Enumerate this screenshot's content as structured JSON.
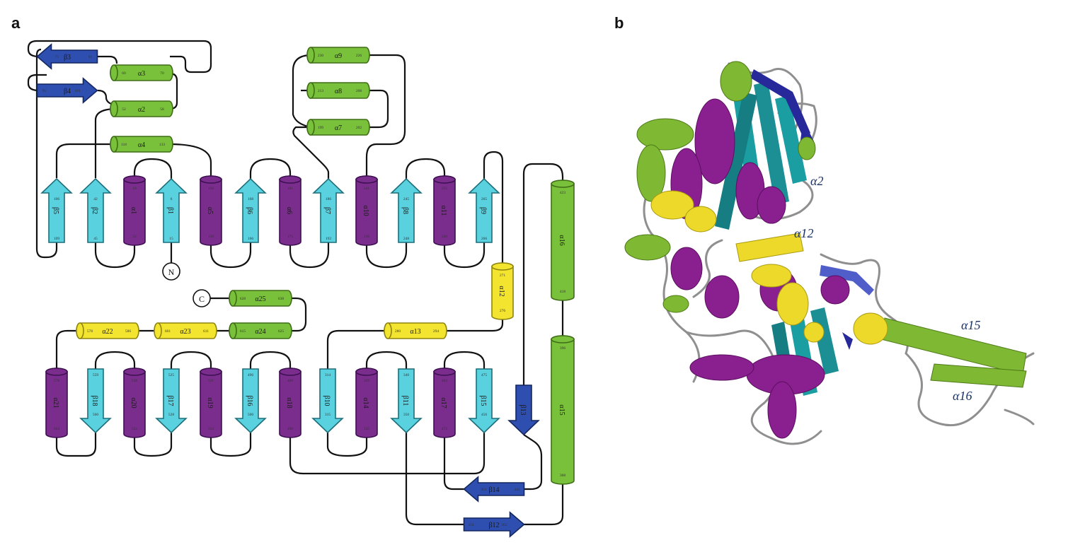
{
  "panel_a": {
    "letter": "a",
    "terminals": {
      "n": "N",
      "c": "C"
    },
    "colors": {
      "alpha_main": "#7b2d8e",
      "alpha_green": "#79c13a",
      "alpha_yellow": "#f3e52f",
      "beta_cyan": "#5ad1df",
      "beta_blue": "#2e4fb0",
      "loop": "#111111"
    },
    "elements": [
      {
        "id": "b3",
        "type": "arrow",
        "color": "blue",
        "label": "β3",
        "res": [
          "75",
          "91"
        ]
      },
      {
        "id": "a3",
        "type": "helix",
        "color": "green",
        "label": "α3",
        "res": [
          "60",
          "70"
        ]
      },
      {
        "id": "b4",
        "type": "arrow",
        "color": "blue",
        "label": "β4",
        "res": [
          "95",
          "101"
        ]
      },
      {
        "id": "a2",
        "type": "helix",
        "color": "green",
        "label": "α2",
        "res": [
          "52",
          "58"
        ]
      },
      {
        "id": "a4",
        "type": "helix",
        "color": "green",
        "label": "α4",
        "res": [
          "118",
          "133"
        ]
      },
      {
        "id": "a9",
        "type": "helix",
        "color": "green",
        "label": "α9",
        "res": [
          "230",
          "226"
        ]
      },
      {
        "id": "a8",
        "type": "helix",
        "color": "green",
        "label": "α8",
        "res": [
          "213",
          "208"
        ]
      },
      {
        "id": "a7",
        "type": "helix",
        "color": "green",
        "label": "α7",
        "res": [
          "199",
          "202"
        ]
      },
      {
        "id": "b5",
        "type": "arrow",
        "color": "cyan",
        "label": "β5",
        "res": [
          "106",
          "109"
        ]
      },
      {
        "id": "b2",
        "type": "arrow",
        "color": "cyan",
        "label": "β2",
        "res": [
          "42",
          "45"
        ]
      },
      {
        "id": "a1",
        "type": "helix",
        "color": "purple",
        "label": "α1",
        "res": [
          "18",
          "22"
        ]
      },
      {
        "id": "b1",
        "type": "arrow",
        "color": "cyan",
        "label": "β1",
        "res": [
          "6",
          "15"
        ]
      },
      {
        "id": "a5",
        "type": "helix",
        "color": "purple",
        "label": "α5",
        "res": [
          "150",
          "136"
        ]
      },
      {
        "id": "b6",
        "type": "arrow",
        "color": "cyan",
        "label": "β6",
        "res": [
          "168",
          "166"
        ]
      },
      {
        "id": "a6",
        "type": "helix",
        "color": "purple",
        "label": "α6",
        "res": [
          "181",
          "175"
        ]
      },
      {
        "id": "b7",
        "type": "arrow",
        "color": "cyan",
        "label": "β7",
        "res": [
          "186",
          "192"
        ]
      },
      {
        "id": "a10",
        "type": "helix",
        "color": "purple",
        "label": "α10",
        "res": [
          "241",
          "236"
        ]
      },
      {
        "id": "b8",
        "type": "arrow",
        "color": "cyan",
        "label": "β8",
        "res": [
          "245",
          "248"
        ]
      },
      {
        "id": "a11",
        "type": "helix",
        "color": "purple",
        "label": "α11",
        "res": [
          "255",
          "249"
        ]
      },
      {
        "id": "b9",
        "type": "arrow",
        "color": "cyan",
        "label": "β9",
        "res": [
          "265",
          "266"
        ]
      },
      {
        "id": "a16",
        "type": "helix",
        "color": "green",
        "label": "α16",
        "res": [
          "423",
          "418"
        ]
      },
      {
        "id": "a12",
        "type": "helix",
        "color": "yellow",
        "label": "α12",
        "res": [
          "271",
          "276"
        ]
      },
      {
        "id": "a15",
        "type": "helix",
        "color": "green",
        "label": "α15",
        "res": [
          "396",
          "368"
        ]
      },
      {
        "id": "a25",
        "type": "helix",
        "color": "green",
        "label": "α25",
        "res": [
          "628",
          "638"
        ]
      },
      {
        "id": "a22",
        "type": "helix",
        "color": "yellow",
        "label": "α22",
        "res": [
          "578",
          "586"
        ]
      },
      {
        "id": "a23",
        "type": "helix",
        "color": "yellow",
        "label": "α23",
        "res": [
          "601",
          "611"
        ]
      },
      {
        "id": "a24",
        "type": "helix",
        "color": "green",
        "label": "α24",
        "res": [
          "615",
          "625"
        ]
      },
      {
        "id": "a13",
        "type": "helix",
        "color": "yellow",
        "label": "α13",
        "res": [
          "280",
          "294"
        ]
      },
      {
        "id": "a21",
        "type": "helix",
        "color": "purple",
        "label": "α21",
        "res": [
          "576",
          "563"
        ]
      },
      {
        "id": "b18",
        "type": "arrow",
        "color": "cyan",
        "label": "β18",
        "res": [
          "559",
          "560"
        ]
      },
      {
        "id": "a20",
        "type": "helix",
        "color": "purple",
        "label": "α20",
        "res": [
          "538",
          "552"
        ]
      },
      {
        "id": "b17",
        "type": "arrow",
        "color": "cyan",
        "label": "β17",
        "res": [
          "525",
          "528"
        ]
      },
      {
        "id": "a19",
        "type": "helix",
        "color": "purple",
        "label": "α19",
        "res": [
          "521",
          "512"
        ]
      },
      {
        "id": "b16",
        "type": "arrow",
        "color": "cyan",
        "label": "β16",
        "res": [
          "496",
          "500"
        ]
      },
      {
        "id": "a18",
        "type": "helix",
        "color": "purple",
        "label": "α18",
        "res": [
          "480",
          "490"
        ]
      },
      {
        "id": "b10",
        "type": "arrow",
        "color": "cyan",
        "label": "β10",
        "res": [
          "314",
          "315"
        ]
      },
      {
        "id": "a14",
        "type": "helix",
        "color": "purple",
        "label": "α14",
        "res": [
          "329",
          "335"
        ]
      },
      {
        "id": "b11",
        "type": "arrow",
        "color": "cyan",
        "label": "β11",
        "res": [
          "340",
          "350"
        ]
      },
      {
        "id": "a17",
        "type": "helix",
        "color": "purple",
        "label": "α17",
        "res": [
          "463",
          "472"
        ]
      },
      {
        "id": "b15",
        "type": "arrow",
        "color": "cyan",
        "label": "β15",
        "res": [
          "475",
          "456"
        ]
      },
      {
        "id": "b13",
        "type": "arrow",
        "color": "blue",
        "label": "β13",
        "res": [
          "",
          ""
        ]
      },
      {
        "id": "b14",
        "type": "arrow",
        "color": "blue",
        "label": "β14",
        "res": [
          "451",
          "444"
        ]
      },
      {
        "id": "b12",
        "type": "arrow",
        "color": "blue",
        "label": "β12",
        "res": [
          "354",
          "362"
        ]
      }
    ]
  },
  "panel_b": {
    "letter": "b",
    "labels": {
      "a2": "α2",
      "a12": "α12",
      "a15": "α15",
      "a16": "α16"
    },
    "colors": {
      "purple": "#8a1f8f",
      "green": "#7fb832",
      "yellow": "#ecd92a",
      "teal": "#1a9ea2",
      "blue": "#27289a",
      "coil": "#8f8f8f"
    }
  }
}
